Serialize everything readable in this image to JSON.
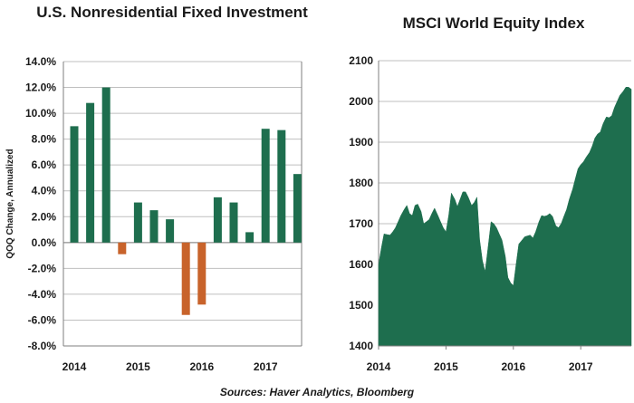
{
  "source": "Sources: Haver Analytics, Bloomberg",
  "colors": {
    "positive": "#1e6e4e",
    "negative": "#c8632b",
    "area": "#1e6e4e",
    "grid": "#bfbfbf",
    "axis": "#7f7f7f"
  },
  "chart_data": [
    {
      "type": "bar",
      "title": "U.S. Nonresidential Fixed Investment",
      "ylabel": "QOQ Change, Annualized",
      "ylim": [
        -8,
        14
      ],
      "yticks": [
        "-8.0%",
        "-6.0%",
        "-4.0%",
        "-2.0%",
        "0.0%",
        "2.0%",
        "4.0%",
        "6.0%",
        "8.0%",
        "10.0%",
        "12.0%",
        "14.0%"
      ],
      "xticks": [
        "2014",
        "2015",
        "2016",
        "2017"
      ],
      "categories": [
        "2014Q1",
        "2014Q2",
        "2014Q3",
        "2014Q4",
        "2015Q1",
        "2015Q2",
        "2015Q3",
        "2015Q4",
        "2016Q1",
        "2016Q2",
        "2016Q3",
        "2016Q4",
        "2017Q1",
        "2017Q2",
        "2017Q3"
      ],
      "values": [
        9.0,
        10.8,
        12.0,
        -0.9,
        3.1,
        2.5,
        1.8,
        -5.6,
        -4.8,
        3.5,
        3.1,
        0.8,
        8.8,
        8.7,
        5.3
      ],
      "grid": true
    },
    {
      "type": "area",
      "title": "MSCI World Equity Index",
      "ylim": [
        1400,
        2100
      ],
      "yticks": [
        "1400",
        "1500",
        "1600",
        "1700",
        "1800",
        "1900",
        "2000",
        "2100"
      ],
      "xticks": [
        "2014",
        "2015",
        "2016",
        "2017"
      ],
      "xlim": [
        2014.0,
        2017.75
      ],
      "x": [
        2014.0,
        2014.04,
        2014.08,
        2014.13,
        2014.17,
        2014.21,
        2014.25,
        2014.29,
        2014.33,
        2014.38,
        2014.42,
        2014.46,
        2014.5,
        2014.54,
        2014.58,
        2014.63,
        2014.67,
        2014.71,
        2014.75,
        2014.79,
        2014.83,
        2014.88,
        2014.92,
        2014.96,
        2015.0,
        2015.04,
        2015.08,
        2015.13,
        2015.17,
        2015.21,
        2015.25,
        2015.29,
        2015.33,
        2015.38,
        2015.42,
        2015.46,
        2015.5,
        2015.54,
        2015.58,
        2015.63,
        2015.67,
        2015.71,
        2015.75,
        2015.79,
        2015.83,
        2015.88,
        2015.92,
        2015.96,
        2016.0,
        2016.04,
        2016.08,
        2016.13,
        2016.17,
        2016.21,
        2016.25,
        2016.29,
        2016.33,
        2016.38,
        2016.42,
        2016.46,
        2016.5,
        2016.54,
        2016.58,
        2016.63,
        2016.67,
        2016.71,
        2016.75,
        2016.79,
        2016.83,
        2016.88,
        2016.92,
        2016.96,
        2017.0,
        2017.04,
        2017.08,
        2017.13,
        2017.17,
        2017.21,
        2017.25,
        2017.29,
        2017.33,
        2017.38,
        2017.42,
        2017.46,
        2017.5,
        2017.54,
        2017.58,
        2017.63,
        2017.67,
        2017.71,
        2017.75
      ],
      "values": [
        1600,
        1640,
        1675,
        1673,
        1672,
        1680,
        1690,
        1705,
        1720,
        1735,
        1745,
        1725,
        1720,
        1745,
        1748,
        1730,
        1700,
        1705,
        1710,
        1725,
        1738,
        1720,
        1705,
        1690,
        1680,
        1720,
        1775,
        1760,
        1742,
        1760,
        1778,
        1778,
        1765,
        1745,
        1752,
        1765,
        1660,
        1610,
        1582,
        1650,
        1705,
        1700,
        1690,
        1675,
        1660,
        1620,
        1568,
        1555,
        1548,
        1600,
        1650,
        1660,
        1668,
        1670,
        1672,
        1665,
        1680,
        1705,
        1720,
        1718,
        1720,
        1725,
        1718,
        1695,
        1690,
        1700,
        1718,
        1735,
        1760,
        1785,
        1810,
        1835,
        1845,
        1852,
        1863,
        1875,
        1890,
        1910,
        1920,
        1925,
        1945,
        1962,
        1960,
        1965,
        1985,
        2000,
        2015,
        2025,
        2035,
        2035,
        2030
      ],
      "grid": true
    }
  ]
}
